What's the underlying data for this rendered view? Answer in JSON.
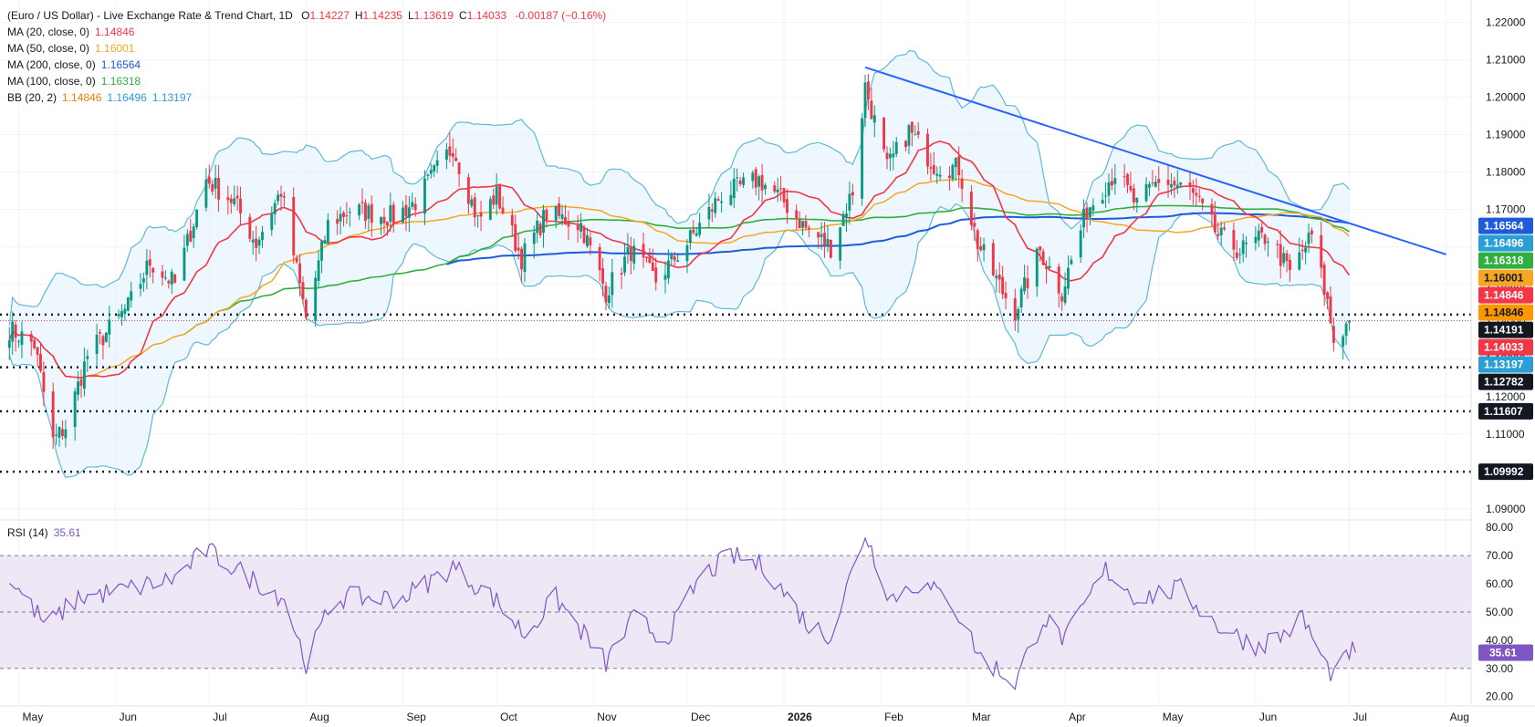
{
  "header": {
    "title": "(Euro / US Dollar) - Live Exchange Rate & Trend Chart, 1D",
    "ohlc": [
      {
        "label": "O",
        "value": "1.14227"
      },
      {
        "label": "H",
        "value": "1.14235"
      },
      {
        "label": "L",
        "value": "1.13619"
      },
      {
        "label": "C",
        "value": "1.14033"
      }
    ],
    "change": "-0.00187 (−0.16%)"
  },
  "indicators": [
    {
      "label": "MA (20, close, 0)",
      "values": [
        "1.14846"
      ],
      "colors": [
        "#f23645"
      ]
    },
    {
      "label": "MA (50, close, 0)",
      "values": [
        "1.16001"
      ],
      "colors": [
        "#f5a623"
      ]
    },
    {
      "label": "MA (200, close, 0)",
      "values": [
        "1.16564"
      ],
      "colors": [
        "#1e5bd8"
      ]
    },
    {
      "label": "MA (100, close, 0)",
      "values": [
        "1.16318"
      ],
      "colors": [
        "#2eaf3e"
      ]
    },
    {
      "label": "BB (20, 2)",
      "values": [
        "1.14846",
        "1.16496",
        "1.13197"
      ],
      "colors": [
        "#f57c00",
        "#2a9fd6",
        "#2a9fd6"
      ]
    }
  ],
  "rsi": {
    "label": "RSI (14)",
    "value": "35.61"
  },
  "colors": {
    "up": "#089981",
    "down": "#f23645",
    "ma20": "#f23645",
    "ma50": "#f5a623",
    "ma100": "#2eaf3e",
    "ma200": "#1e5bd8",
    "bb": "#5fb8d9",
    "bb_fill": "#e3f2fd",
    "rsi": "#7e57c2",
    "rsi_band": "#ede7f6",
    "trendline": "#2962ff"
  },
  "chart_data": {
    "type": "candlestick",
    "price_axis": {
      "ticks": [
        "1.09000",
        "1.10000",
        "1.11000",
        "1.12000",
        "1.13000",
        "1.14000",
        "1.15000",
        "1.16000",
        "1.17000",
        "1.18000",
        "1.19000",
        "1.20000",
        "1.21000",
        "1.22000"
      ],
      "range": [
        1.088,
        1.226
      ]
    },
    "time_axis": {
      "labels": [
        "May",
        "Jun",
        "Jul",
        "Aug",
        "Sep",
        "Oct",
        "Nov",
        "Dec",
        "2026",
        "Feb",
        "Mar",
        "Apr",
        "May",
        "Jun",
        "Jul",
        "Aug"
      ]
    },
    "price_badges": [
      {
        "value": "1.16564",
        "color": "#1e5bd8",
        "text_color": "#ffffff"
      },
      {
        "value": "1.16496",
        "color": "#2a9fd6",
        "text_color": "#ffffff"
      },
      {
        "value": "1.16318",
        "color": "#2eaf3e",
        "text_color": "#ffffff"
      },
      {
        "value": "1.16001",
        "color": "#f5a623",
        "text_color": "#131722"
      },
      {
        "value": "1.14846",
        "color": "#f23645",
        "text_color": "#ffffff"
      },
      {
        "value": "1.14846",
        "color": "#ff9800",
        "text_color": "#131722"
      },
      {
        "value": "1.14191",
        "color": "#131722",
        "text_color": "#ffffff"
      },
      {
        "value": "1.14033",
        "color": "#f23645",
        "text_color": "#ffffff"
      },
      {
        "value": "1.13197",
        "color": "#2a9fd6",
        "text_color": "#ffffff"
      },
      {
        "value": "1.12782",
        "color": "#131722",
        "text_color": "#ffffff"
      },
      {
        "value": "1.11607",
        "color": "#131722",
        "text_color": "#ffffff"
      },
      {
        "value": "1.09992",
        "color": "#131722",
        "text_color": "#ffffff"
      }
    ],
    "horizontal_levels": [
      1.14191,
      1.12782,
      1.11607,
      1.09992
    ],
    "trendline": {
      "from": {
        "date": "2026-01-27",
        "price": 1.208
      },
      "to": {
        "date": "2026-08-01",
        "price": 1.158
      }
    },
    "last_close": 1.14033,
    "price_anchors": [
      [
        "2025-04-28",
        1.138
      ],
      [
        "2025-05-06",
        1.134
      ],
      [
        "2025-05-12",
        1.108
      ],
      [
        "2025-05-16",
        1.112
      ],
      [
        "2025-05-23",
        1.131
      ],
      [
        "2025-06-05",
        1.144
      ],
      [
        "2025-06-12",
        1.156
      ],
      [
        "2025-06-20",
        1.15
      ],
      [
        "2025-06-30",
        1.178
      ],
      [
        "2025-07-09",
        1.172
      ],
      [
        "2025-07-16",
        1.161
      ],
      [
        "2025-07-24",
        1.175
      ],
      [
        "2025-08-01",
        1.141
      ],
      [
        "2025-08-08",
        1.166
      ],
      [
        "2025-08-15",
        1.17
      ],
      [
        "2025-08-29",
        1.168
      ],
      [
        "2025-09-05",
        1.172
      ],
      [
        "2025-09-17",
        1.187
      ],
      [
        "2025-09-25",
        1.167
      ],
      [
        "2025-10-01",
        1.174
      ],
      [
        "2025-10-09",
        1.157
      ],
      [
        "2025-10-17",
        1.169
      ],
      [
        "2025-10-28",
        1.166
      ],
      [
        "2025-11-05",
        1.148
      ],
      [
        "2025-11-13",
        1.159
      ],
      [
        "2025-11-21",
        1.151
      ],
      [
        "2025-12-01",
        1.161
      ],
      [
        "2025-12-12",
        1.174
      ],
      [
        "2025-12-24",
        1.178
      ],
      [
        "2025-12-31",
        1.173
      ],
      [
        "2026-01-08",
        1.165
      ],
      [
        "2026-01-16",
        1.16
      ],
      [
        "2026-01-23",
        1.175
      ],
      [
        "2026-01-27",
        1.203
      ],
      [
        "2026-02-03",
        1.181
      ],
      [
        "2026-02-10",
        1.191
      ],
      [
        "2026-02-18",
        1.182
      ],
      [
        "2026-02-26",
        1.181
      ],
      [
        "2026-03-04",
        1.161
      ],
      [
        "2026-03-12",
        1.148
      ],
      [
        "2026-03-16",
        1.143
      ],
      [
        "2026-03-24",
        1.159
      ],
      [
        "2026-03-31",
        1.148
      ],
      [
        "2026-04-08",
        1.17
      ],
      [
        "2026-04-17",
        1.18
      ],
      [
        "2026-04-24",
        1.171
      ],
      [
        "2026-05-01",
        1.178
      ],
      [
        "2026-05-11",
        1.175
      ],
      [
        "2026-05-20",
        1.163
      ],
      [
        "2026-05-27",
        1.159
      ],
      [
        "2026-06-05",
        1.163
      ],
      [
        "2026-06-12",
        1.153
      ],
      [
        "2026-06-19",
        1.163
      ],
      [
        "2026-06-24",
        1.145
      ],
      [
        "2026-06-26",
        1.135
      ],
      [
        "2026-06-30",
        1.139
      ],
      [
        "2026-07-01",
        1.14
      ]
    ],
    "rsi_axis": {
      "ticks": [
        "20.00",
        "30.00",
        "40.00",
        "50.00",
        "60.00",
        "70.00",
        "80.00"
      ],
      "range": [
        17,
        82
      ],
      "levels": [
        30,
        50,
        70
      ]
    },
    "rsi_anchors": [
      [
        "2025-04-28",
        62
      ],
      [
        "2025-05-10",
        45
      ],
      [
        "2025-05-20",
        55
      ],
      [
        "2025-06-05",
        58
      ],
      [
        "2025-06-20",
        62
      ],
      [
        "2025-06-30",
        72
      ],
      [
        "2025-07-10",
        65
      ],
      [
        "2025-07-25",
        55
      ],
      [
        "2025-08-01",
        32
      ],
      [
        "2025-08-10",
        55
      ],
      [
        "2025-09-01",
        55
      ],
      [
        "2025-09-17",
        66
      ],
      [
        "2025-09-30",
        55
      ],
      [
        "2025-10-10",
        42
      ],
      [
        "2025-10-20",
        55
      ],
      [
        "2025-11-05",
        32
      ],
      [
        "2025-11-14",
        48
      ],
      [
        "2025-11-24",
        40
      ],
      [
        "2025-12-05",
        62
      ],
      [
        "2025-12-15",
        70
      ],
      [
        "2025-12-26",
        66
      ],
      [
        "2026-01-09",
        45
      ],
      [
        "2026-01-16",
        42
      ],
      [
        "2026-01-27",
        78
      ],
      [
        "2026-02-04",
        55
      ],
      [
        "2026-02-12",
        60
      ],
      [
        "2026-02-23",
        55
      ],
      [
        "2026-03-05",
        34
      ],
      [
        "2026-03-16",
        25
      ],
      [
        "2026-03-25",
        48
      ],
      [
        "2026-04-01",
        40
      ],
      [
        "2026-04-14",
        65
      ],
      [
        "2026-04-24",
        55
      ],
      [
        "2026-05-08",
        58
      ],
      [
        "2026-05-20",
        45
      ],
      [
        "2026-06-01",
        38
      ],
      [
        "2026-06-10",
        42
      ],
      [
        "2026-06-16",
        48
      ],
      [
        "2026-06-24",
        30
      ],
      [
        "2026-06-27",
        27
      ],
      [
        "2026-07-01",
        36
      ],
      [
        "2026-07-03",
        35.6
      ]
    ]
  }
}
